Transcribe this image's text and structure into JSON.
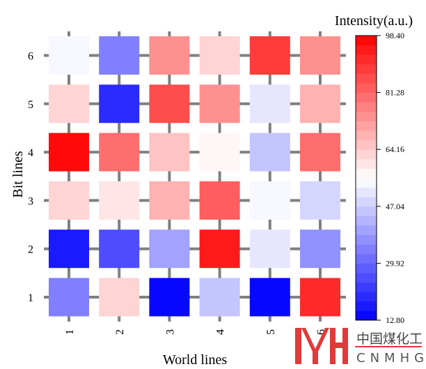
{
  "chart_data": {
    "type": "heatmap",
    "xlabel": "World lines",
    "ylabel": "Bit lines",
    "x_categories": [
      "1",
      "2",
      "3",
      "4",
      "5",
      "6"
    ],
    "y_categories": [
      "1",
      "2",
      "3",
      "4",
      "5",
      "6"
    ],
    "values_by_row_bottom_to_top": [
      [
        34.2,
        62.5,
        12.8,
        45.7,
        12.8,
        91.3
      ],
      [
        16.2,
        24.4,
        39.7,
        94.0,
        51.0,
        36.3
      ],
      [
        62.5,
        60.0,
        69.0,
        83.5,
        54.3,
        48.8
      ],
      [
        98.4,
        80.4,
        65.4,
        57.0,
        45.7,
        80.4
      ],
      [
        62.5,
        18.9,
        86.4,
        75.3,
        51.0,
        69.0
      ],
      [
        54.3,
        34.2,
        75.3,
        62.5,
        89.0,
        75.3
      ]
    ],
    "colorbar": {
      "title": "Intensity(a.u.)",
      "range": [
        12.8,
        98.4
      ],
      "levels": 30,
      "ticks": [
        "12.80",
        "29.92",
        "47.04",
        "64.16",
        "81.28",
        "98.40"
      ],
      "low_color": "#0000ff",
      "mid_color": "#ffffff",
      "high_color": "#ff0000"
    },
    "grid_color": "#808080"
  },
  "logo": {
    "mark": "MH",
    "chinese": "中国煤化工",
    "latin": "CNMHG",
    "color": "#e03a3a"
  }
}
